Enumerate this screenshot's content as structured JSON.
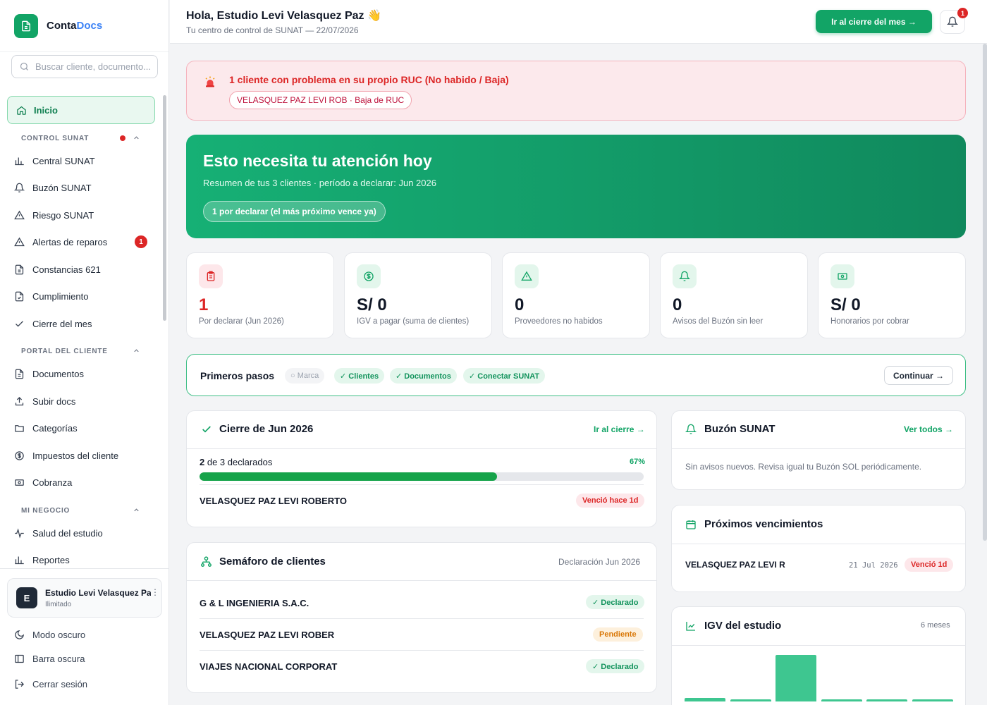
{
  "app": {
    "name_part1": "Conta",
    "name_part2": "Docs"
  },
  "search": {
    "placeholder": "Buscar cliente, documento..."
  },
  "nav": {
    "active": "Inicio",
    "sections": [
      {
        "label": "CONTROL SUNAT",
        "items": [
          "Central SUNAT",
          "Buzón SUNAT",
          "Riesgo SUNAT",
          "Alertas de reparos",
          "Constancias 621",
          "Cumplimiento",
          "Cierre del mes"
        ]
      },
      {
        "label": "PORTAL DEL CLIENTE",
        "items": [
          "Documentos",
          "Subir docs",
          "Categorías",
          "Impuestos del cliente",
          "Cobranza"
        ]
      },
      {
        "label": "MI NEGOCIO",
        "items": [
          "Salud del estudio",
          "Reportes"
        ]
      }
    ],
    "alert_badge": "1"
  },
  "user": {
    "initial": "E",
    "name": "Estudio Levi Velasquez Paz",
    "plan": "Ilimitado"
  },
  "bottom_links": [
    "Modo oscuro",
    "Barra oscura",
    "Cerrar sesión"
  ],
  "header": {
    "greeting": "Hola, Estudio Levi Velasquez Paz 👋",
    "subtitle": "Tu centro de control de SUNAT — 22/07/2026",
    "cta": "Ir al cierre del mes →",
    "notif_count": "1"
  },
  "ruc_alert": {
    "title": "1 cliente con problema en su propio RUC (No habido / Baja)",
    "chip": "VELASQUEZ PAZ LEVI ROB · Baja de RUC"
  },
  "hero": {
    "title": "Esto necesita tu atención hoy",
    "subtitle": "Resumen de tus 3 clientes · período a declarar: Jun 2026",
    "pill": "1 por declarar (el más próximo vence ya)"
  },
  "stats": [
    {
      "value": "1",
      "label": "Por declarar (Jun 2026)",
      "icon": "clipboard-icon",
      "color": "#dc2626"
    },
    {
      "value": "S/ 0",
      "label": "IGV a pagar (suma de clientes)",
      "icon": "dollar-icon",
      "color": "#12a466"
    },
    {
      "value": "0",
      "label": "Proveedores no habidos",
      "icon": "warning-icon",
      "color": "#12a466"
    },
    {
      "value": "0",
      "label": "Avisos del Buzón sin leer",
      "icon": "bell-icon",
      "color": "#12a466"
    },
    {
      "value": "S/ 0",
      "label": "Honorarios por cobrar",
      "icon": "money-icon",
      "color": "#12a466"
    }
  ],
  "steps": {
    "title": "Primeros pasos",
    "chips": [
      "○ Marca",
      "✓ Clientes",
      "✓ Documentos",
      "✓ Conectar SUNAT"
    ],
    "button": "Continuar →"
  },
  "cierre": {
    "title": "Cierre de Jun 2026",
    "link": "Ir al cierre →",
    "progress_bold": "2",
    "progress_text": " de 3 declarados",
    "percent_text": "67%",
    "progress": 0.67,
    "row_name": "VELASQUEZ PAZ LEVI ROBERTO",
    "row_badge": "Venció hace 1d"
  },
  "semaforo": {
    "title": "Semáforo de clientes",
    "meta": "Declaración Jun 2026",
    "rows": [
      {
        "name": "G & L INGENIERIA S.A.C.",
        "status": "✓ Declarado"
      },
      {
        "name": "VELASQUEZ PAZ LEVI ROBER",
        "status": "Pendiente"
      },
      {
        "name": "VIAJES NACIONAL CORPORAT",
        "status": "✓ Declarado"
      }
    ]
  },
  "buzon": {
    "title": "Buzón SUNAT",
    "link": "Ver todos →",
    "empty": "Sin avisos nuevos. Revisa igual tu Buzón SOL periódicamente."
  },
  "vencimientos": {
    "title": "Próximos vencimientos",
    "name": "VELASQUEZ PAZ LEVI R",
    "date": "21 Jul 2026",
    "badge": "Venció 1d"
  },
  "igv": {
    "title": "IGV del estudio",
    "meta": "6 meses",
    "bars": [
      0.08,
      0.04,
      1.0,
      0.04,
      0.04,
      0.04
    ]
  }
}
